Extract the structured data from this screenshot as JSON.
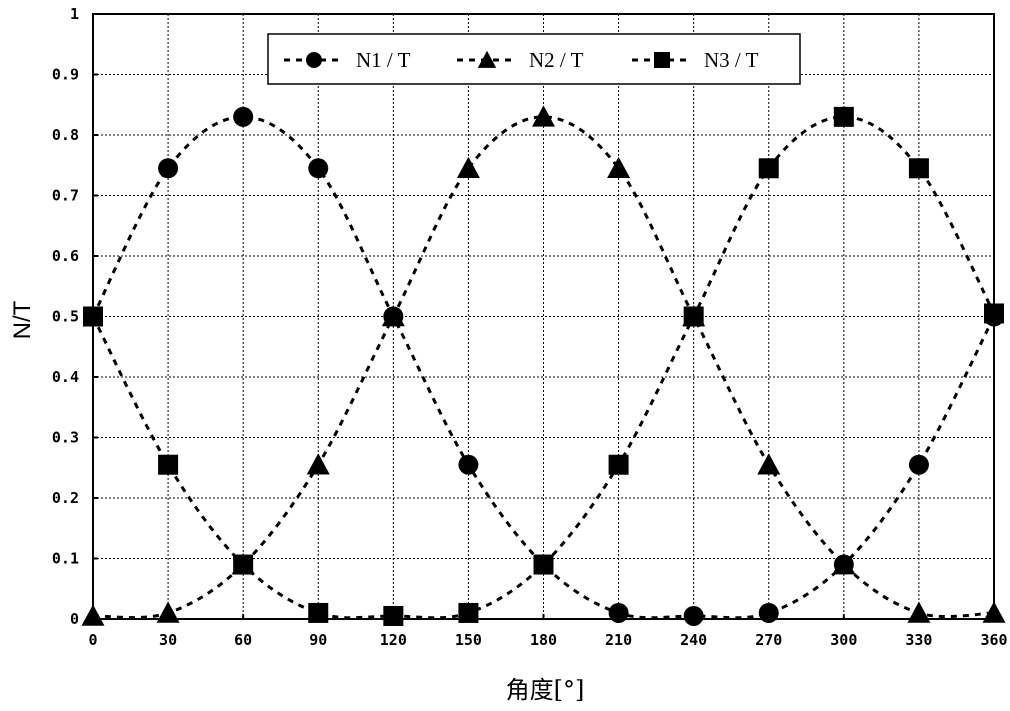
{
  "chart_data": {
    "type": "line",
    "title": "",
    "xlabel": "角度[°]",
    "ylabel": "N/T",
    "xlim": [
      0,
      360
    ],
    "ylim": [
      0,
      1
    ],
    "grid": true,
    "legend_position": "top-center",
    "x": [
      0,
      30,
      60,
      90,
      120,
      150,
      180,
      210,
      240,
      270,
      300,
      330,
      360
    ],
    "x_tick_labels": [
      "0",
      "30",
      "60",
      "90",
      "120",
      "150",
      "180",
      "210",
      "240",
      "270",
      "300",
      "330",
      "360"
    ],
    "y_tick_labels": [
      "0",
      "0.1",
      "0.2",
      "0.3",
      "0.4",
      "0.5",
      "0.6",
      "0.7",
      "0.8",
      "0.9",
      "1"
    ],
    "series": [
      {
        "name": "N1 / T",
        "marker": "circle",
        "values": [
          0.5,
          0.745,
          0.83,
          0.745,
          0.5,
          0.255,
          0.09,
          0.01,
          0.005,
          0.01,
          0.09,
          0.255,
          0.5
        ]
      },
      {
        "name": "N2 / T",
        "marker": "triangle",
        "values": [
          0.005,
          0.01,
          0.09,
          0.255,
          0.5,
          0.745,
          0.83,
          0.745,
          0.5,
          0.255,
          0.09,
          0.01,
          0.01
        ]
      },
      {
        "name": "N3 / T",
        "marker": "square",
        "values": [
          0.5,
          0.255,
          0.09,
          0.01,
          0.005,
          0.01,
          0.09,
          0.255,
          0.5,
          0.745,
          0.83,
          0.745,
          0.505
        ]
      }
    ]
  }
}
